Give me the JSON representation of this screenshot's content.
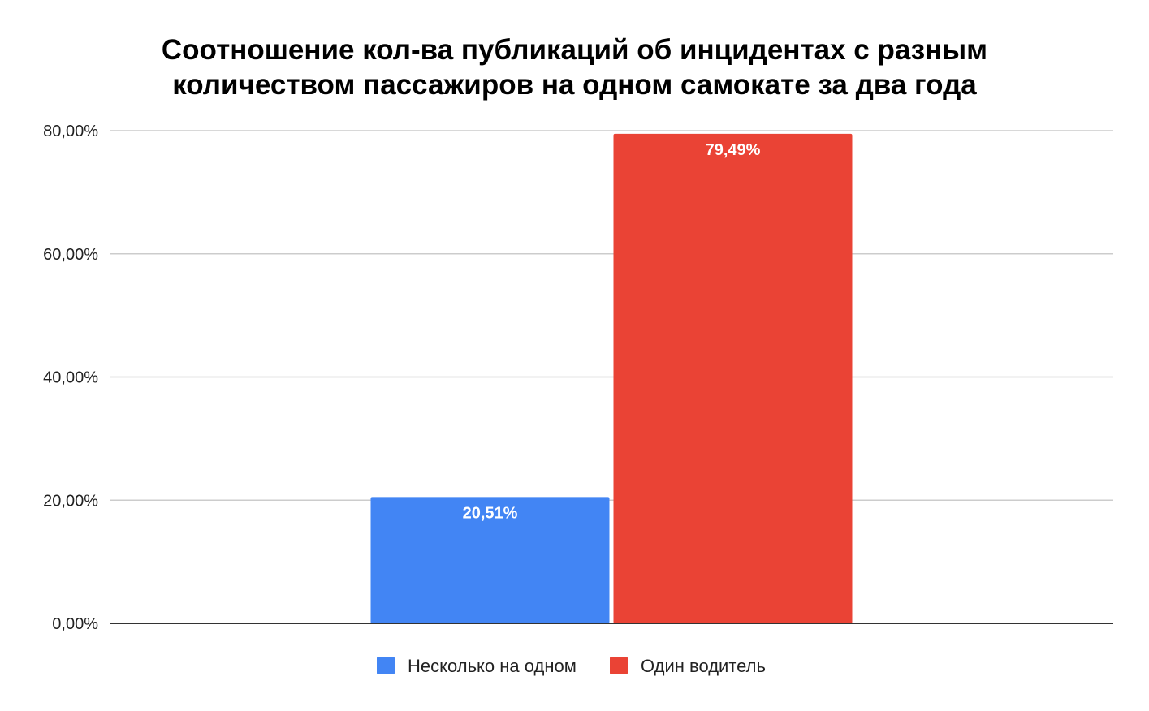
{
  "chart_data": {
    "type": "bar",
    "title_lines": [
      "Соотношение кол-ва публикаций об инцидентах с разным",
      "количеством пассажиров на одном самокате за два года"
    ],
    "xlabel": "",
    "ylabel": "",
    "ylim": [
      0,
      80
    ],
    "yticks": [
      0,
      20,
      40,
      60,
      80
    ],
    "ytick_labels": [
      "0,00%",
      "20,00%",
      "40,00%",
      "60,00%",
      "80,00%"
    ],
    "grid": true,
    "legend_position": "bottom",
    "series": [
      {
        "name": "Несколько на одном",
        "value": 20.51,
        "label": "20,51%",
        "color": "#4285f4"
      },
      {
        "name": "Один водитель",
        "value": 79.49,
        "label": "79,49%",
        "color": "#ea4335"
      }
    ]
  }
}
